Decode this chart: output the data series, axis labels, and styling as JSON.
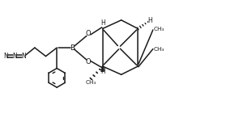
{
  "bg_color": "#ffffff",
  "line_color": "#1a1a1a",
  "line_width": 1.1,
  "fig_width": 2.95,
  "fig_height": 1.41,
  "dpi": 100,
  "xlim": [
    0,
    9.5
  ],
  "ylim": [
    0,
    4.5
  ]
}
